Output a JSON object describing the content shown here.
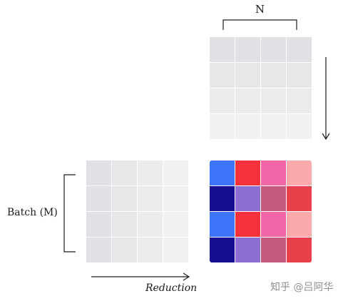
{
  "labels": {
    "n": "N",
    "batch": "Batch (M)",
    "reduction": "Reduction",
    "watermark": "知乎 @吕阿华"
  },
  "colors": {
    "top_matrix": [
      [
        "#dfe1e4",
        "#dfe1e4",
        "#dfe1e4",
        "#dfe1e4"
      ],
      [
        "#e5e7e9",
        "#e5e7e9",
        "#e5e7e9",
        "#e5e7e9"
      ],
      [
        "#eaebed",
        "#eaebed",
        "#eaebed",
        "#eaebed"
      ],
      [
        "#f0f1f2",
        "#f0f1f2",
        "#f0f1f2",
        "#f0f1f2"
      ]
    ],
    "left_matrix": [
      [
        "#dfe1e4",
        "#e5e7e9",
        "#eaebed",
        "#f0f1f2"
      ],
      [
        "#dfe1e4",
        "#e5e7e9",
        "#eaebed",
        "#f0f1f2"
      ],
      [
        "#dfe1e4",
        "#e5e7e9",
        "#eaebed",
        "#f0f1f2"
      ],
      [
        "#dfe1e4",
        "#e5e7e9",
        "#eaebed",
        "#f0f1f2"
      ]
    ],
    "result_matrix": [
      [
        "#3d74f8",
        "#f5313b",
        "#f266a8",
        "#fbaaac"
      ],
      [
        "#180e91",
        "#8c6fd3",
        "#c45a7f",
        "#e8404b"
      ],
      [
        "#3d74f8",
        "#f5313b",
        "#f266a8",
        "#fbaaac"
      ],
      [
        "#180e91",
        "#8c6fd3",
        "#c45a7f",
        "#e8404b"
      ]
    ],
    "lines": "#1a1a1a"
  }
}
